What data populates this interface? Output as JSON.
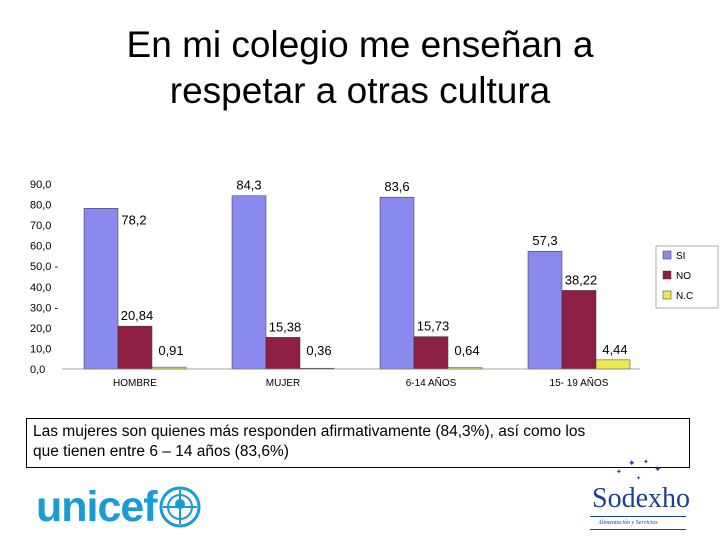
{
  "title_line1": "En mi colegio me enseñan a",
  "title_line2": "respetar a otras cultura",
  "caption_line1": "Las mujeres son quienes más responden afirmativamente (84,3%), así como los",
  "caption_line2": "que tienen entre 6 – 14 años (83,6%)",
  "logos": {
    "unicef": "unicef",
    "sodexho": "Sodexho",
    "sodexho_tagline": "Alimentación y Servicios"
  },
  "chart_data": {
    "type": "bar",
    "categories": [
      "HOMBRE",
      "MUJER",
      "6-14 AÑOS",
      "15- 19 AÑOS"
    ],
    "series": [
      {
        "name": "SI",
        "color": "#8a8aee",
        "values": [
          78.2,
          84.3,
          83.6,
          57.3
        ],
        "labels": [
          "78,2",
          "84,3",
          "83,6",
          "57,3"
        ]
      },
      {
        "name": "NO",
        "color": "#8e1f44",
        "values": [
          20.84,
          15.38,
          15.73,
          38.22
        ],
        "labels": [
          "20,84",
          "15,38",
          "15,73",
          "38,22"
        ]
      },
      {
        "name": "N.C",
        "color": "#eaea55",
        "values": [
          0.91,
          0.36,
          0.64,
          4.44
        ],
        "labels": [
          "0,91",
          "0,36",
          "0,64",
          "4,44"
        ]
      }
    ],
    "ylim": [
      0,
      90
    ],
    "yticks": [
      0,
      10,
      20,
      30,
      40,
      50,
      60,
      70,
      80,
      90
    ],
    "ytick_labels": [
      "0,0",
      "10,0",
      "20,0",
      "30,0 -",
      "40,0",
      "50,0 -",
      "60,0",
      "70,0",
      "80,0",
      "90,0"
    ],
    "legend": "right",
    "grid": false
  }
}
